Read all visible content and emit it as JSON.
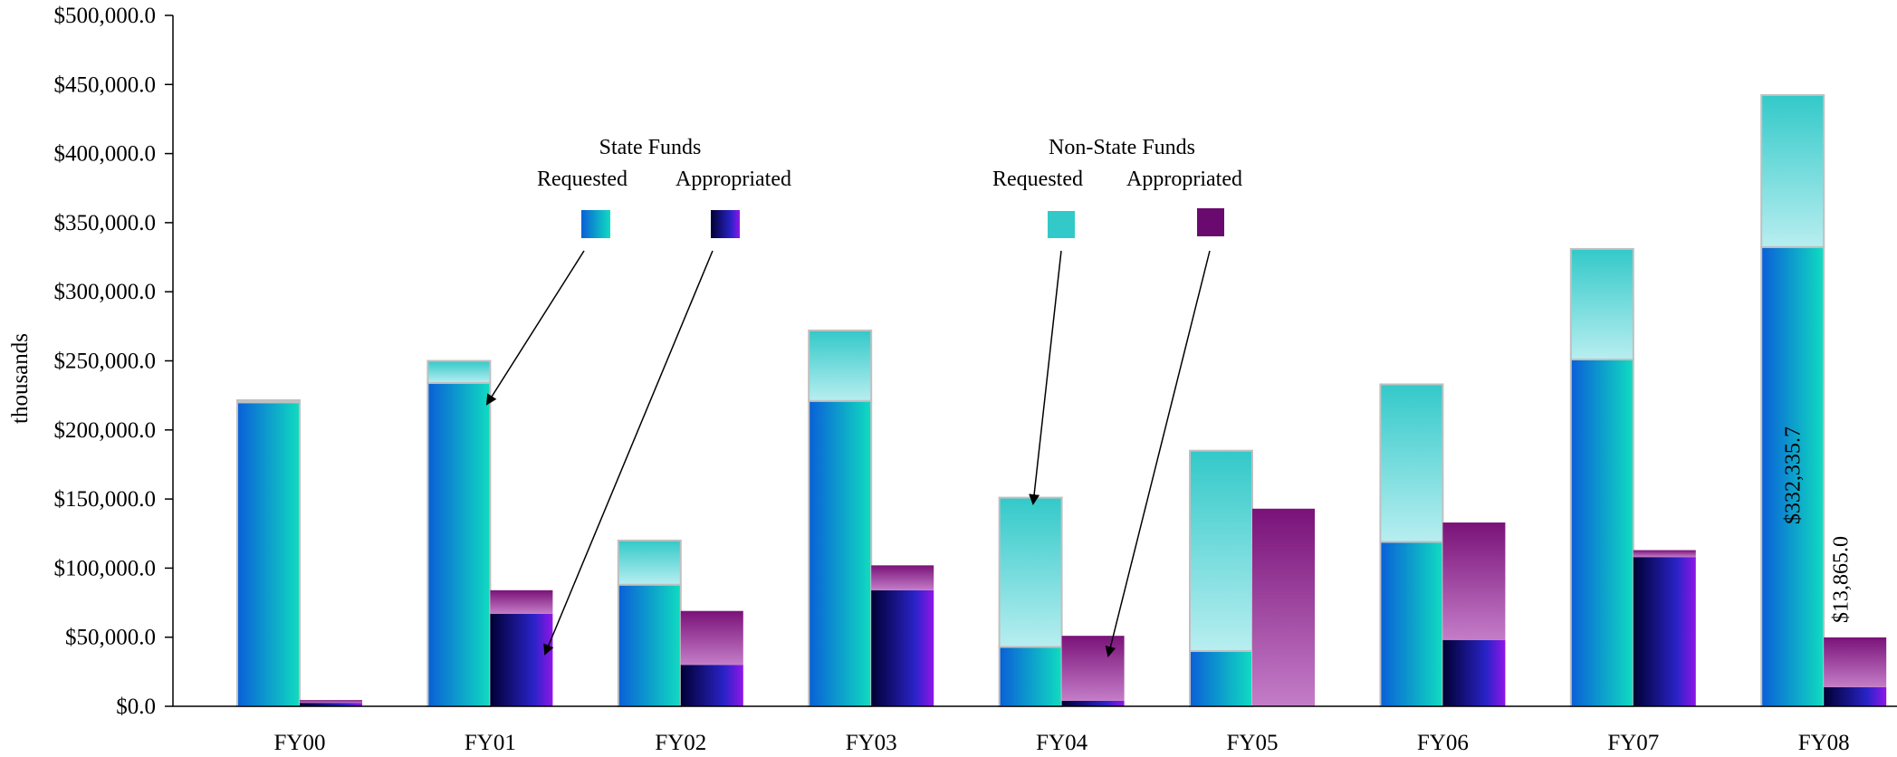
{
  "chart_data": {
    "type": "bar",
    "title": "",
    "xlabel": "",
    "ylabel": "thousands",
    "ylim": [
      0,
      500000
    ],
    "y_ticks": [
      "$0.0",
      "$50,000.0",
      "$100,000.0",
      "$150,000.0",
      "$200,000.0",
      "$250,000.0",
      "$300,000.0",
      "$350,000.0",
      "$400,000.0",
      "$450,000.0",
      "$500,000.0"
    ],
    "y_tick_values": [
      0,
      50000,
      100000,
      150000,
      200000,
      250000,
      300000,
      350000,
      400000,
      450000,
      500000
    ],
    "categories": [
      "FY00",
      "FY01",
      "FY02",
      "FY03",
      "FY04",
      "FY05",
      "FY06",
      "FY07",
      "FY08"
    ],
    "stacks": [
      {
        "name": "Requested",
        "series": [
          {
            "name": "State Funds Requested",
            "values": [
              220000,
              234000,
              88000,
              221000,
              43000,
              40000,
              119000,
              251000,
              332335.7
            ]
          },
          {
            "name": "Non-State Funds Requested",
            "values": [
              1500,
              16000,
              32000,
              51000,
              108000,
              145000,
              114000,
              80000,
              110000
            ]
          }
        ]
      },
      {
        "name": "Appropriated",
        "series": [
          {
            "name": "State Funds Appropriated",
            "values": [
              2500,
              67000,
              30000,
              84000,
              4000,
              0,
              48000,
              108000,
              13865.0
            ]
          },
          {
            "name": "Non-State Funds Appropriated",
            "values": [
              2000,
              17000,
              39000,
              18000,
              47000,
              143000,
              85000,
              5000,
              36000
            ]
          }
        ]
      }
    ],
    "data_labels": [
      {
        "category": "FY08",
        "series": "State Funds Requested",
        "text": "$332,335.7"
      },
      {
        "category": "FY08",
        "series": "State Funds Appropriated",
        "text": "$13,865.0"
      }
    ],
    "legend": {
      "placement": "top-center",
      "groups": [
        {
          "title": "State Funds",
          "entries": [
            "Requested",
            "Appropriated"
          ]
        },
        {
          "title": "Non-State Funds",
          "entries": [
            "Requested",
            "Appropriated"
          ]
        }
      ]
    },
    "annotations": "arrows from legend swatches to FY01 state bars and FY04 non-state/appropriated bars",
    "grid": false,
    "colors": {
      "state_requested": [
        "#0a5fd8",
        "#10dcc0"
      ],
      "state_appropriated": [
        "#000033",
        "#9016e8"
      ],
      "nonstate_requested": [
        "#33c9c9",
        "#b8eef0"
      ],
      "nonstate_appropriated": [
        "#7a1279",
        "#c47dc8"
      ]
    }
  }
}
